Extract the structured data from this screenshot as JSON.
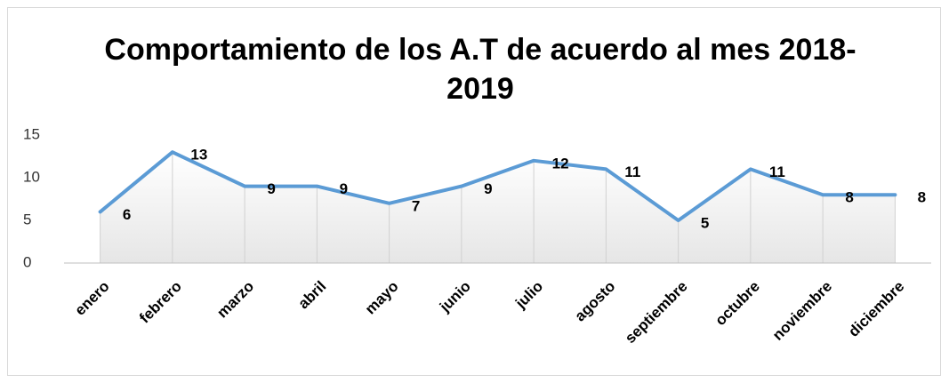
{
  "chart_data": {
    "type": "line",
    "title": "Comportamiento de los A.T de acuerdo al mes 2018-2019",
    "categories": [
      "enero",
      "febrero",
      "marzo",
      "abril",
      "mayo",
      "junio",
      "julio",
      "agosto",
      "septiembre",
      "octubre",
      "noviembre",
      "diciembre"
    ],
    "series": [
      {
        "name": "A.T",
        "color": "#5b9bd5",
        "values": [
          6,
          13,
          9,
          9,
          7,
          9,
          12,
          11,
          5,
          11,
          8,
          8
        ]
      }
    ],
    "ylim": [
      0,
      15
    ],
    "yticks": [
      0,
      5,
      10,
      15
    ],
    "grid": false,
    "legend": false
  }
}
